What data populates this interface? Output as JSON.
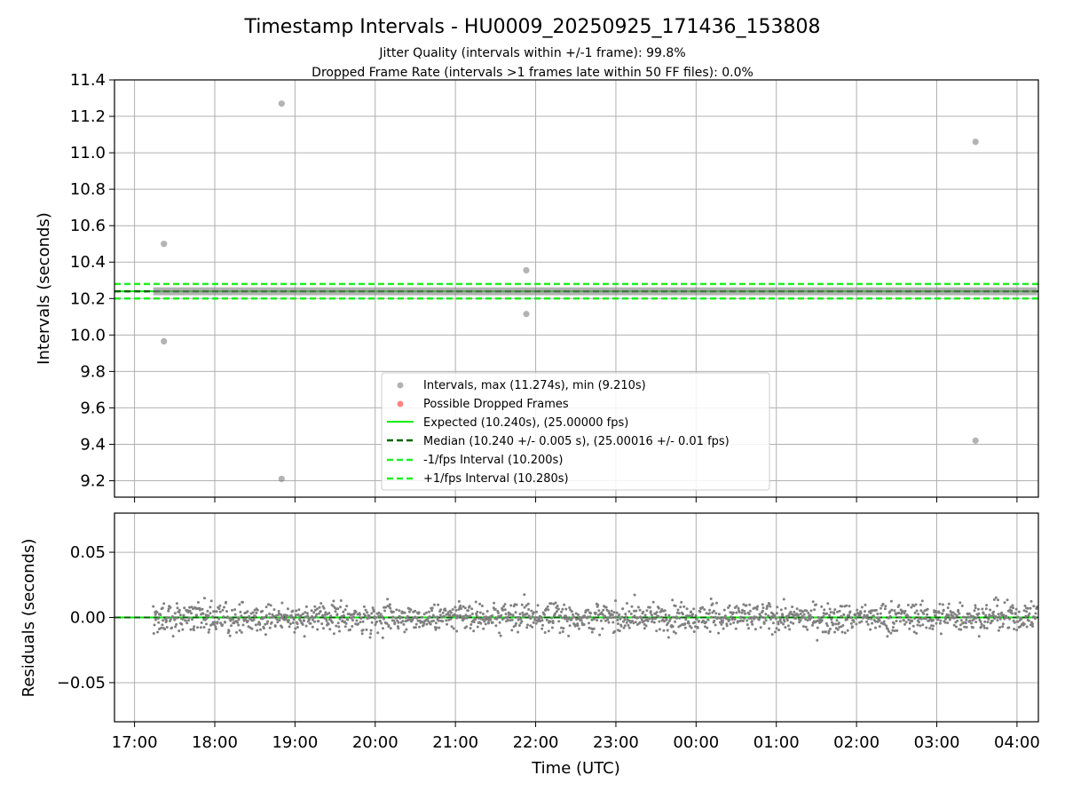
{
  "header": {
    "title": "Timestamp Intervals - HU0009_20250925_171436_153808",
    "subtitle_line1": "Jitter Quality (intervals within +/-1 frame): 99.8%",
    "subtitle_line2": "Dropped Frame Rate (intervals >1 frames late within 50 FF files): 0.0%"
  },
  "colors": {
    "expected": "#00ee00",
    "median": "#006400",
    "interval_band": "#22ee22",
    "points": "#808080",
    "dropped": "#ff6666",
    "grid": "#b0b0b0"
  },
  "chart_data": [
    {
      "type": "scatter",
      "panel": "intervals",
      "ylabel": "Intervals (seconds)",
      "xlabel": "",
      "ylim": [
        9.11,
        11.4
      ],
      "grid": true,
      "legend_placement": "lower-center",
      "x_ticks": [
        "17:00",
        "18:00",
        "19:00",
        "20:00",
        "21:00",
        "22:00",
        "23:00",
        "00:00",
        "01:00",
        "02:00",
        "03:00",
        "04:00"
      ],
      "y_ticks": [
        "9.2",
        "9.4",
        "9.6",
        "9.8",
        "10.0",
        "10.2",
        "10.4",
        "10.6",
        "10.8",
        "11.0",
        "11.2",
        "11.4"
      ],
      "reference_lines": {
        "expected": 10.24,
        "median": 10.24,
        "minus_1_fps": 10.2,
        "plus_1_fps": 10.28
      },
      "outliers": [
        {
          "x": "17:22",
          "y": 10.5
        },
        {
          "x": "17:22",
          "y": 9.965
        },
        {
          "x": "18:50",
          "y": 11.27
        },
        {
          "x": "18:50",
          "y": 9.21
        },
        {
          "x": "21:53",
          "y": 10.355
        },
        {
          "x": "21:53",
          "y": 10.115
        },
        {
          "x": "03:29",
          "y": 11.06
        },
        {
          "x": "03:29",
          "y": 9.42
        }
      ],
      "series_range": {
        "start": "17:14",
        "end": "04:15",
        "typical_value": 10.24
      },
      "legend": [
        {
          "label": "Intervals, max (11.274s), min (9.210s)",
          "marker": "dot-gray"
        },
        {
          "label": "Possible Dropped Frames",
          "marker": "dot-red"
        },
        {
          "label": "Expected (10.240s), (25.00000 fps)",
          "marker": "line-solid-green"
        },
        {
          "label": "Median (10.240 +/- 0.005 s), (25.00016 +/- 0.01 fps)",
          "marker": "line-dashed-darkgreen"
        },
        {
          "label": "-1/fps Interval (10.200s)",
          "marker": "line-dashed-green"
        },
        {
          "label": "+1/fps Interval (10.280s)",
          "marker": "line-dashed-green"
        }
      ]
    },
    {
      "type": "scatter",
      "panel": "residuals",
      "ylabel": "Residuals (seconds)",
      "xlabel": "Time (UTC)",
      "ylim": [
        -0.08,
        0.08
      ],
      "grid": true,
      "x_ticks": [
        "17:00",
        "18:00",
        "19:00",
        "20:00",
        "21:00",
        "22:00",
        "23:00",
        "00:00",
        "01:00",
        "02:00",
        "03:00",
        "04:00"
      ],
      "y_ticks": [
        "−0.05",
        "0.00",
        "0.05"
      ],
      "zero_line": 0.0,
      "residual_spread": 0.02,
      "series_range": {
        "start": "17:14",
        "end": "04:15"
      }
    }
  ]
}
